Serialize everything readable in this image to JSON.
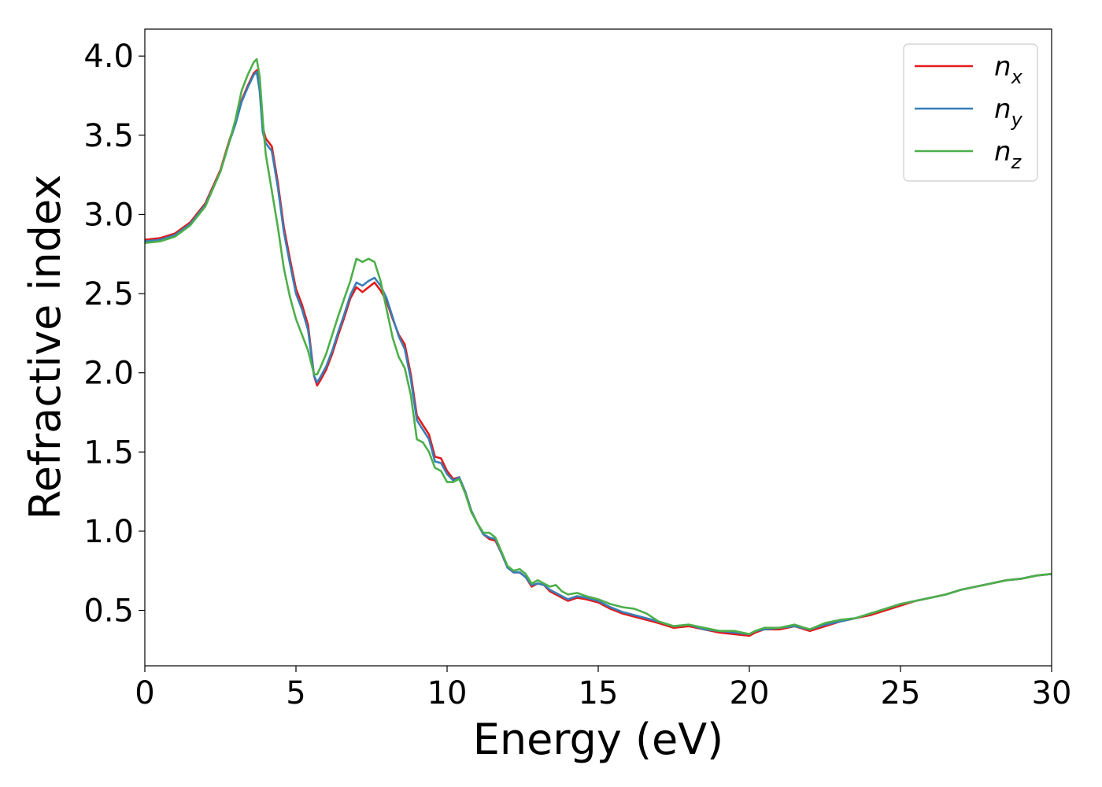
{
  "chart_data": {
    "type": "line",
    "title": "",
    "xlabel": "Energy (eV)",
    "ylabel": "Refractive index",
    "xlim": [
      0,
      30
    ],
    "ylim": [
      0.15,
      4.17
    ],
    "xticks": [
      0,
      5,
      10,
      15,
      20,
      25,
      30
    ],
    "yticks": [
      0.5,
      1.0,
      1.5,
      2.0,
      2.5,
      3.0,
      3.5,
      4.0
    ],
    "xtick_labels": [
      "0",
      "5",
      "10",
      "15",
      "20",
      "25",
      "30"
    ],
    "ytick_labels": [
      "0.5",
      "1.0",
      "1.5",
      "2.0",
      "2.5",
      "3.0",
      "3.5",
      "4.0"
    ],
    "grid": false,
    "legend_position": "top-right",
    "series": [
      {
        "name": "n_x",
        "label_base": "n",
        "label_sub": "x",
        "color": "#e41a1c",
        "x": [
          0,
          0.5,
          1,
          1.5,
          2,
          2.5,
          2.8,
          3.0,
          3.2,
          3.4,
          3.6,
          3.7,
          3.8,
          3.9,
          4.0,
          4.2,
          4.4,
          4.6,
          4.8,
          5.0,
          5.2,
          5.4,
          5.6,
          5.7,
          5.8,
          6.0,
          6.2,
          6.4,
          6.6,
          6.8,
          7.0,
          7.2,
          7.4,
          7.6,
          7.8,
          8.0,
          8.2,
          8.4,
          8.6,
          8.8,
          9.0,
          9.2,
          9.4,
          9.6,
          9.8,
          10.0,
          10.2,
          10.4,
          10.6,
          10.8,
          11.0,
          11.2,
          11.4,
          11.6,
          11.8,
          12.0,
          12.2,
          12.4,
          12.6,
          12.8,
          13.0,
          13.2,
          13.4,
          13.6,
          13.8,
          14.0,
          14.3,
          14.6,
          15.0,
          15.4,
          15.8,
          16.2,
          16.6,
          17.0,
          17.5,
          18.0,
          18.5,
          19.0,
          19.5,
          20.0,
          20.2,
          20.5,
          21.0,
          21.5,
          22.0,
          22.5,
          23.0,
          23.5,
          24.0,
          24.5,
          25.0,
          25.5,
          26.0,
          26.5,
          27.0,
          27.5,
          28.0,
          28.5,
          29.0,
          29.5,
          30.0
        ],
        "y": [
          2.84,
          2.85,
          2.88,
          2.95,
          3.07,
          3.28,
          3.47,
          3.58,
          3.72,
          3.81,
          3.89,
          3.91,
          3.8,
          3.55,
          3.48,
          3.43,
          3.2,
          2.92,
          2.72,
          2.53,
          2.43,
          2.3,
          1.98,
          1.92,
          1.95,
          2.02,
          2.12,
          2.24,
          2.35,
          2.47,
          2.54,
          2.51,
          2.54,
          2.57,
          2.52,
          2.45,
          2.34,
          2.24,
          2.18,
          1.99,
          1.73,
          1.67,
          1.61,
          1.47,
          1.46,
          1.38,
          1.33,
          1.34,
          1.25,
          1.13,
          1.05,
          0.98,
          0.95,
          0.94,
          0.86,
          0.77,
          0.74,
          0.74,
          0.71,
          0.65,
          0.67,
          0.66,
          0.62,
          0.6,
          0.58,
          0.56,
          0.58,
          0.57,
          0.55,
          0.51,
          0.48,
          0.46,
          0.44,
          0.42,
          0.39,
          0.4,
          0.38,
          0.36,
          0.35,
          0.34,
          0.36,
          0.38,
          0.38,
          0.4,
          0.37,
          0.4,
          0.43,
          0.45,
          0.47,
          0.5,
          0.53,
          0.56,
          0.58,
          0.6,
          0.63,
          0.65,
          0.67,
          0.69,
          0.7,
          0.72,
          0.73
        ]
      },
      {
        "name": "n_y",
        "label_base": "n",
        "label_sub": "y",
        "color": "#377eb8",
        "x": [
          0,
          0.5,
          1,
          1.5,
          2,
          2.5,
          2.8,
          3.0,
          3.2,
          3.4,
          3.6,
          3.7,
          3.8,
          3.9,
          4.0,
          4.2,
          4.4,
          4.6,
          4.8,
          5.0,
          5.2,
          5.4,
          5.6,
          5.7,
          5.8,
          6.0,
          6.2,
          6.4,
          6.6,
          6.8,
          7.0,
          7.2,
          7.4,
          7.6,
          7.8,
          8.0,
          8.2,
          8.4,
          8.6,
          8.8,
          9.0,
          9.2,
          9.4,
          9.6,
          9.8,
          10.0,
          10.2,
          10.4,
          10.6,
          10.8,
          11.0,
          11.2,
          11.4,
          11.6,
          11.8,
          12.0,
          12.2,
          12.4,
          12.6,
          12.8,
          13.0,
          13.2,
          13.4,
          13.6,
          13.8,
          14.0,
          14.3,
          14.6,
          15.0,
          15.4,
          15.8,
          16.2,
          16.6,
          17.0,
          17.5,
          18.0,
          18.5,
          19.0,
          19.5,
          20.0,
          20.2,
          20.5,
          21.0,
          21.5,
          22.0,
          22.5,
          23.0,
          23.5,
          24.0,
          24.5,
          25.0,
          25.5,
          26.0,
          26.5,
          27.0,
          27.5,
          28.0,
          28.5,
          29.0,
          29.5,
          30.0
        ],
        "y": [
          2.83,
          2.84,
          2.87,
          2.94,
          3.06,
          3.27,
          3.46,
          3.57,
          3.71,
          3.8,
          3.88,
          3.9,
          3.78,
          3.52,
          3.45,
          3.4,
          3.17,
          2.89,
          2.69,
          2.5,
          2.4,
          2.27,
          1.98,
          1.94,
          1.97,
          2.04,
          2.14,
          2.26,
          2.37,
          2.49,
          2.57,
          2.55,
          2.58,
          2.6,
          2.55,
          2.47,
          2.35,
          2.23,
          2.15,
          1.96,
          1.7,
          1.64,
          1.58,
          1.44,
          1.43,
          1.36,
          1.32,
          1.34,
          1.25,
          1.13,
          1.05,
          0.98,
          0.96,
          0.95,
          0.86,
          0.77,
          0.74,
          0.74,
          0.71,
          0.66,
          0.67,
          0.66,
          0.63,
          0.61,
          0.59,
          0.57,
          0.59,
          0.58,
          0.56,
          0.52,
          0.49,
          0.47,
          0.45,
          0.43,
          0.4,
          0.41,
          0.38,
          0.37,
          0.36,
          0.35,
          0.37,
          0.38,
          0.39,
          0.4,
          0.38,
          0.41,
          0.43,
          0.45,
          0.48,
          0.51,
          0.54,
          0.56,
          0.58,
          0.6,
          0.63,
          0.65,
          0.67,
          0.69,
          0.7,
          0.72,
          0.73
        ]
      },
      {
        "name": "n_z",
        "label_base": "n",
        "label_sub": "z",
        "color": "#4daf4a",
        "x": [
          0,
          0.5,
          1,
          1.5,
          2,
          2.5,
          2.8,
          3.0,
          3.2,
          3.4,
          3.6,
          3.7,
          3.8,
          3.9,
          4.0,
          4.2,
          4.4,
          4.6,
          4.8,
          5.0,
          5.2,
          5.4,
          5.6,
          5.7,
          5.8,
          6.0,
          6.2,
          6.4,
          6.6,
          6.8,
          7.0,
          7.2,
          7.4,
          7.6,
          7.8,
          8.0,
          8.2,
          8.4,
          8.6,
          8.8,
          9.0,
          9.2,
          9.4,
          9.6,
          9.8,
          10.0,
          10.2,
          10.4,
          10.6,
          10.8,
          11.0,
          11.2,
          11.4,
          11.6,
          11.8,
          12.0,
          12.2,
          12.4,
          12.6,
          12.8,
          13.0,
          13.2,
          13.4,
          13.6,
          13.8,
          14.0,
          14.3,
          14.6,
          15.0,
          15.4,
          15.8,
          16.2,
          16.6,
          17.0,
          17.5,
          18.0,
          18.5,
          19.0,
          19.5,
          20.0,
          20.2,
          20.5,
          21.0,
          21.5,
          22.0,
          22.5,
          23.0,
          23.5,
          24.0,
          24.5,
          25.0,
          25.5,
          26.0,
          26.5,
          27.0,
          27.5,
          28.0,
          28.5,
          29.0,
          29.5,
          30.0
        ],
        "y": [
          2.82,
          2.83,
          2.86,
          2.93,
          3.05,
          3.27,
          3.46,
          3.6,
          3.78,
          3.88,
          3.96,
          3.98,
          3.87,
          3.6,
          3.38,
          3.15,
          2.92,
          2.66,
          2.48,
          2.34,
          2.24,
          2.14,
          1.99,
          1.99,
          2.03,
          2.12,
          2.24,
          2.36,
          2.47,
          2.58,
          2.72,
          2.7,
          2.72,
          2.7,
          2.58,
          2.4,
          2.22,
          2.1,
          2.03,
          1.86,
          1.58,
          1.56,
          1.5,
          1.4,
          1.38,
          1.31,
          1.31,
          1.33,
          1.24,
          1.12,
          1.05,
          0.99,
          0.99,
          0.96,
          0.87,
          0.78,
          0.75,
          0.76,
          0.73,
          0.67,
          0.69,
          0.67,
          0.65,
          0.66,
          0.62,
          0.6,
          0.61,
          0.59,
          0.57,
          0.54,
          0.52,
          0.51,
          0.48,
          0.43,
          0.4,
          0.41,
          0.39,
          0.37,
          0.37,
          0.35,
          0.37,
          0.39,
          0.39,
          0.41,
          0.38,
          0.42,
          0.44,
          0.45,
          0.48,
          0.51,
          0.54,
          0.56,
          0.58,
          0.6,
          0.63,
          0.65,
          0.67,
          0.69,
          0.7,
          0.72,
          0.73
        ]
      }
    ]
  }
}
